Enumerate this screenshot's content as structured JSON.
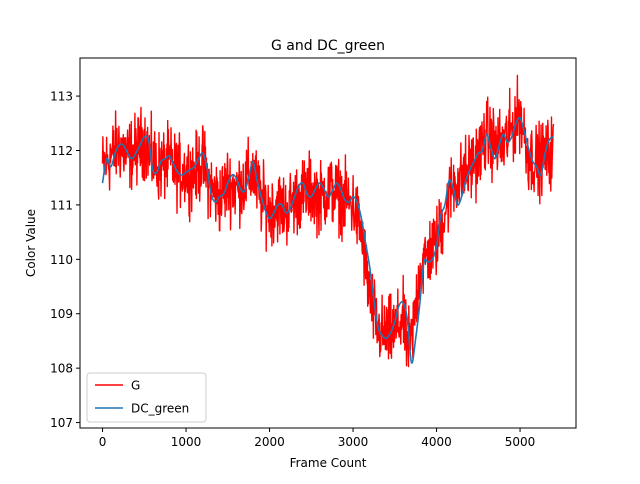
{
  "chart_data": {
    "type": "line",
    "title": "G and DC_green",
    "xlabel": "Frame Count",
    "ylabel": "Color Value",
    "xlim": [
      -270,
      5670
    ],
    "ylim": [
      106.9,
      113.7
    ],
    "xticks": [
      0,
      1000,
      2000,
      3000,
      4000,
      5000
    ],
    "yticks": [
      107,
      108,
      109,
      110,
      111,
      112,
      113
    ],
    "legend_position": "lower-left",
    "grid": false,
    "series": [
      {
        "name": "G",
        "color": "#ff0000",
        "kind": "noisy",
        "noise": 0.32,
        "x": [
          0,
          100,
          200,
          300,
          400,
          500,
          600,
          700,
          800,
          900,
          1000,
          1100,
          1200,
          1300,
          1400,
          1500,
          1600,
          1700,
          1800,
          1900,
          2000,
          2100,
          2200,
          2300,
          2400,
          2500,
          2600,
          2700,
          2800,
          2900,
          3000,
          3100,
          3200,
          3300,
          3400,
          3500,
          3600,
          3650,
          3700,
          3800,
          3900,
          4000,
          4100,
          4200,
          4300,
          4400,
          4500,
          4600,
          4700,
          4800,
          4900,
          5000,
          5100,
          5200,
          5300,
          5400
        ],
        "y": [
          111.7,
          111.9,
          112.1,
          111.9,
          112.0,
          112.2,
          111.8,
          111.7,
          111.8,
          111.6,
          111.6,
          111.6,
          111.8,
          111.3,
          111.1,
          111.4,
          111.3,
          111.4,
          111.6,
          111.1,
          110.9,
          111.0,
          110.9,
          111.1,
          111.2,
          111.3,
          111.1,
          111.3,
          111.2,
          111.1,
          111.0,
          110.5,
          109.3,
          108.7,
          108.6,
          108.7,
          108.9,
          108.4,
          108.5,
          109.8,
          110.1,
          110.3,
          110.9,
          111.4,
          111.5,
          111.7,
          111.9,
          112.3,
          112.1,
          112.1,
          112.4,
          112.7,
          111.9,
          111.8,
          111.9,
          112.0
        ]
      },
      {
        "name": "DC_green",
        "color": "#1f77b4",
        "kind": "smooth",
        "x": [
          0,
          50,
          100,
          150,
          200,
          250,
          300,
          350,
          400,
          450,
          500,
          550,
          600,
          650,
          700,
          750,
          800,
          850,
          900,
          950,
          1000,
          1050,
          1100,
          1150,
          1200,
          1250,
          1300,
          1350,
          1400,
          1450,
          1500,
          1550,
          1600,
          1650,
          1700,
          1750,
          1800,
          1850,
          1900,
          1950,
          2000,
          2050,
          2100,
          2150,
          2200,
          2250,
          2300,
          2350,
          2400,
          2450,
          2500,
          2550,
          2600,
          2650,
          2700,
          2750,
          2800,
          2850,
          2900,
          2950,
          3000,
          3050,
          3100,
          3150,
          3200,
          3250,
          3300,
          3350,
          3400,
          3450,
          3500,
          3550,
          3600,
          3650,
          3700,
          3750,
          3800,
          3850,
          3900,
          3950,
          4000,
          4050,
          4100,
          4150,
          4200,
          4250,
          4300,
          4350,
          4400,
          4450,
          4500,
          4550,
          4600,
          4650,
          4700,
          4750,
          4800,
          4850,
          4900,
          4950,
          5000,
          5050,
          5100,
          5150,
          5200,
          5250,
          5300,
          5350,
          5400
        ],
        "y": [
          111.4,
          111.85,
          111.7,
          111.95,
          112.1,
          112.1,
          111.95,
          111.85,
          111.95,
          112.1,
          112.25,
          112.2,
          111.65,
          111.6,
          111.8,
          111.85,
          111.9,
          111.75,
          111.6,
          111.55,
          111.6,
          111.65,
          111.7,
          111.85,
          111.95,
          111.7,
          111.2,
          111.05,
          111.15,
          111.2,
          111.4,
          111.55,
          111.5,
          111.3,
          111.25,
          111.5,
          111.8,
          111.45,
          111.15,
          110.9,
          110.75,
          110.85,
          111.0,
          111.0,
          110.85,
          110.95,
          111.15,
          111.35,
          111.4,
          111.2,
          111.15,
          111.3,
          111.4,
          111.3,
          111.15,
          111.25,
          111.4,
          111.3,
          111.1,
          111.05,
          111.15,
          111.05,
          110.75,
          110.3,
          109.85,
          109.25,
          108.75,
          108.6,
          108.55,
          108.65,
          108.85,
          109.15,
          109.2,
          108.9,
          108.1,
          108.55,
          109.2,
          109.95,
          109.95,
          110.0,
          110.25,
          110.8,
          111.0,
          111.45,
          111.3,
          111.0,
          111.15,
          111.45,
          111.65,
          111.8,
          111.95,
          112.0,
          112.3,
          112.05,
          111.85,
          112.1,
          112.3,
          112.15,
          112.25,
          112.5,
          112.6,
          112.35,
          112.05,
          111.8,
          111.7,
          111.55,
          111.95,
          112.2,
          112.25
        ]
      }
    ]
  }
}
